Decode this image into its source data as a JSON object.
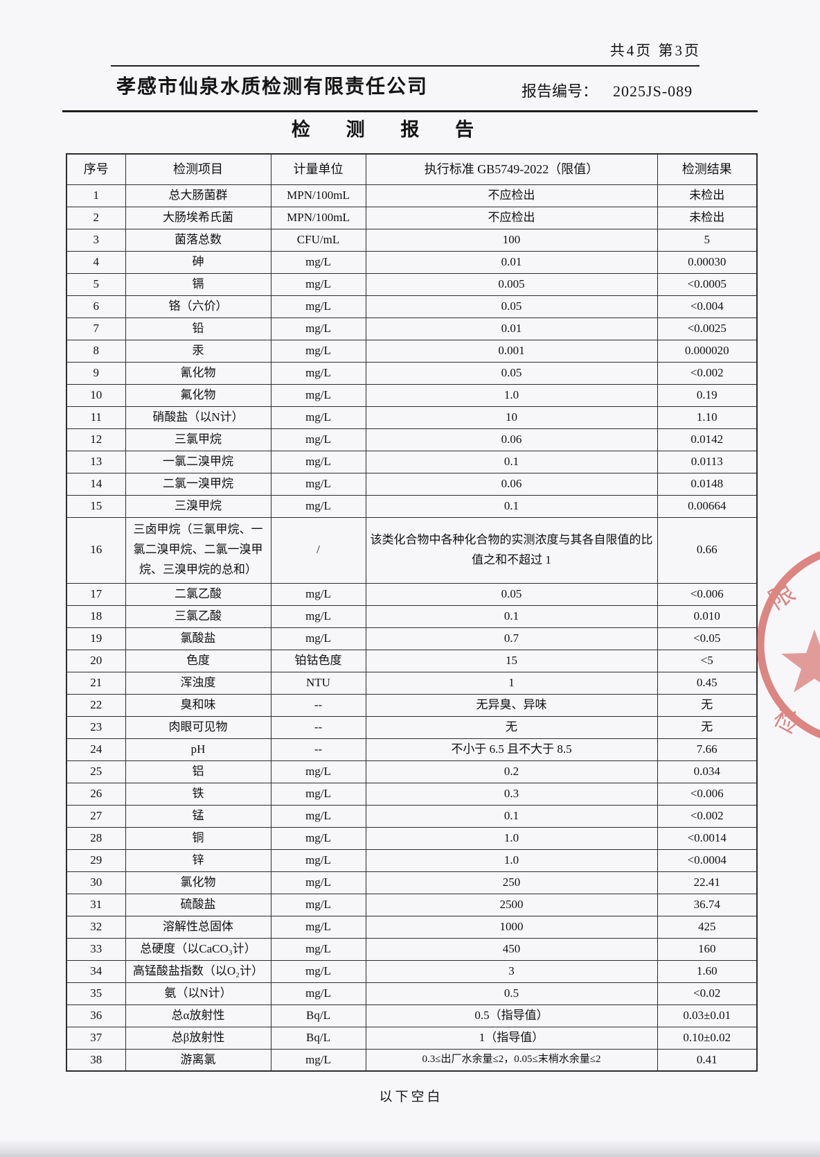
{
  "page": {
    "page_info": "共4页 第3页",
    "company": "孝感市仙泉水质检测有限责任公司",
    "report_no_label": "报告编号：",
    "report_no": "2025JS-089",
    "title": "检 测 报 告",
    "footer_note": "以下空白",
    "stamp": {
      "color": "#cc4038",
      "chars": [
        "限",
        "检"
      ]
    }
  },
  "table": {
    "headers": [
      "序号",
      "检测项目",
      "计量单位",
      "执行标准 GB5749-2022（限值）",
      "检测结果"
    ],
    "rows": [
      [
        "1",
        "总大肠菌群",
        "MPN/100mL",
        "不应检出",
        "未检出"
      ],
      [
        "2",
        "大肠埃希氏菌",
        "MPN/100mL",
        "不应检出",
        "未检出"
      ],
      [
        "3",
        "菌落总数",
        "CFU/mL",
        "100",
        "5"
      ],
      [
        "4",
        "砷",
        "mg/L",
        "0.01",
        "0.00030"
      ],
      [
        "5",
        "镉",
        "mg/L",
        "0.005",
        "<0.0005"
      ],
      [
        "6",
        "铬（六价）",
        "mg/L",
        "0.05",
        "<0.004"
      ],
      [
        "7",
        "铅",
        "mg/L",
        "0.01",
        "<0.0025"
      ],
      [
        "8",
        "汞",
        "mg/L",
        "0.001",
        "0.000020"
      ],
      [
        "9",
        "氰化物",
        "mg/L",
        "0.05",
        "<0.002"
      ],
      [
        "10",
        "氟化物",
        "mg/L",
        "1.0",
        "0.19"
      ],
      [
        "11",
        "硝酸盐（以N计）",
        "mg/L",
        "10",
        "1.10"
      ],
      [
        "12",
        "三氯甲烷",
        "mg/L",
        "0.06",
        "0.0142"
      ],
      [
        "13",
        "一氯二溴甲烷",
        "mg/L",
        "0.1",
        "0.0113"
      ],
      [
        "14",
        "二氯一溴甲烷",
        "mg/L",
        "0.06",
        "0.0148"
      ],
      [
        "15",
        "三溴甲烷",
        "mg/L",
        "0.1",
        "0.00664"
      ],
      [
        "16",
        "三卤甲烷（三氯甲烷、一氯二溴甲烷、二氯一溴甲烷、三溴甲烷的总和）",
        "/",
        "该类化合物中各种化合物的实测浓度与其各自限值的比值之和不超过 1",
        "0.66"
      ],
      [
        "17",
        "二氯乙酸",
        "mg/L",
        "0.05",
        "<0.006"
      ],
      [
        "18",
        "三氯乙酸",
        "mg/L",
        "0.1",
        "0.010"
      ],
      [
        "19",
        "氯酸盐",
        "mg/L",
        "0.7",
        "<0.05"
      ],
      [
        "20",
        "色度",
        "铂钴色度",
        "15",
        "<5"
      ],
      [
        "21",
        "浑浊度",
        "NTU",
        "1",
        "0.45"
      ],
      [
        "22",
        "臭和味",
        "--",
        "无异臭、异味",
        "无"
      ],
      [
        "23",
        "肉眼可见物",
        "--",
        "无",
        "无"
      ],
      [
        "24",
        "pH",
        "--",
        "不小于 6.5 且不大于 8.5",
        "7.66"
      ],
      [
        "25",
        "铝",
        "mg/L",
        "0.2",
        "0.034"
      ],
      [
        "26",
        "铁",
        "mg/L",
        "0.3",
        "<0.006"
      ],
      [
        "27",
        "锰",
        "mg/L",
        "0.1",
        "<0.002"
      ],
      [
        "28",
        "铜",
        "mg/L",
        "1.0",
        "<0.0014"
      ],
      [
        "29",
        "锌",
        "mg/L",
        "1.0",
        "<0.0004"
      ],
      [
        "30",
        "氯化物",
        "mg/L",
        "250",
        "22.41"
      ],
      [
        "31",
        "硫酸盐",
        "mg/L",
        "2500",
        "36.74"
      ],
      [
        "32",
        "溶解性总固体",
        "mg/L",
        "1000",
        "425"
      ],
      [
        "33",
        "总硬度（以CaCO₃计）",
        "mg/L",
        "450",
        "160"
      ],
      [
        "34",
        "高锰酸盐指数（以O₂计）",
        "mg/L",
        "3",
        "1.60"
      ],
      [
        "35",
        "氨（以N计）",
        "mg/L",
        "0.5",
        "<0.02"
      ],
      [
        "36",
        "总α放射性",
        "Bq/L",
        "0.5（指导值）",
        "0.03±0.01"
      ],
      [
        "37",
        "总β放射性",
        "Bq/L",
        "1（指导值）",
        "0.10±0.02"
      ],
      [
        "38",
        "游离氯",
        "mg/L",
        "0.3≤出厂水余量≤2，0.05≤末梢水余量≤2",
        "0.41"
      ]
    ]
  }
}
